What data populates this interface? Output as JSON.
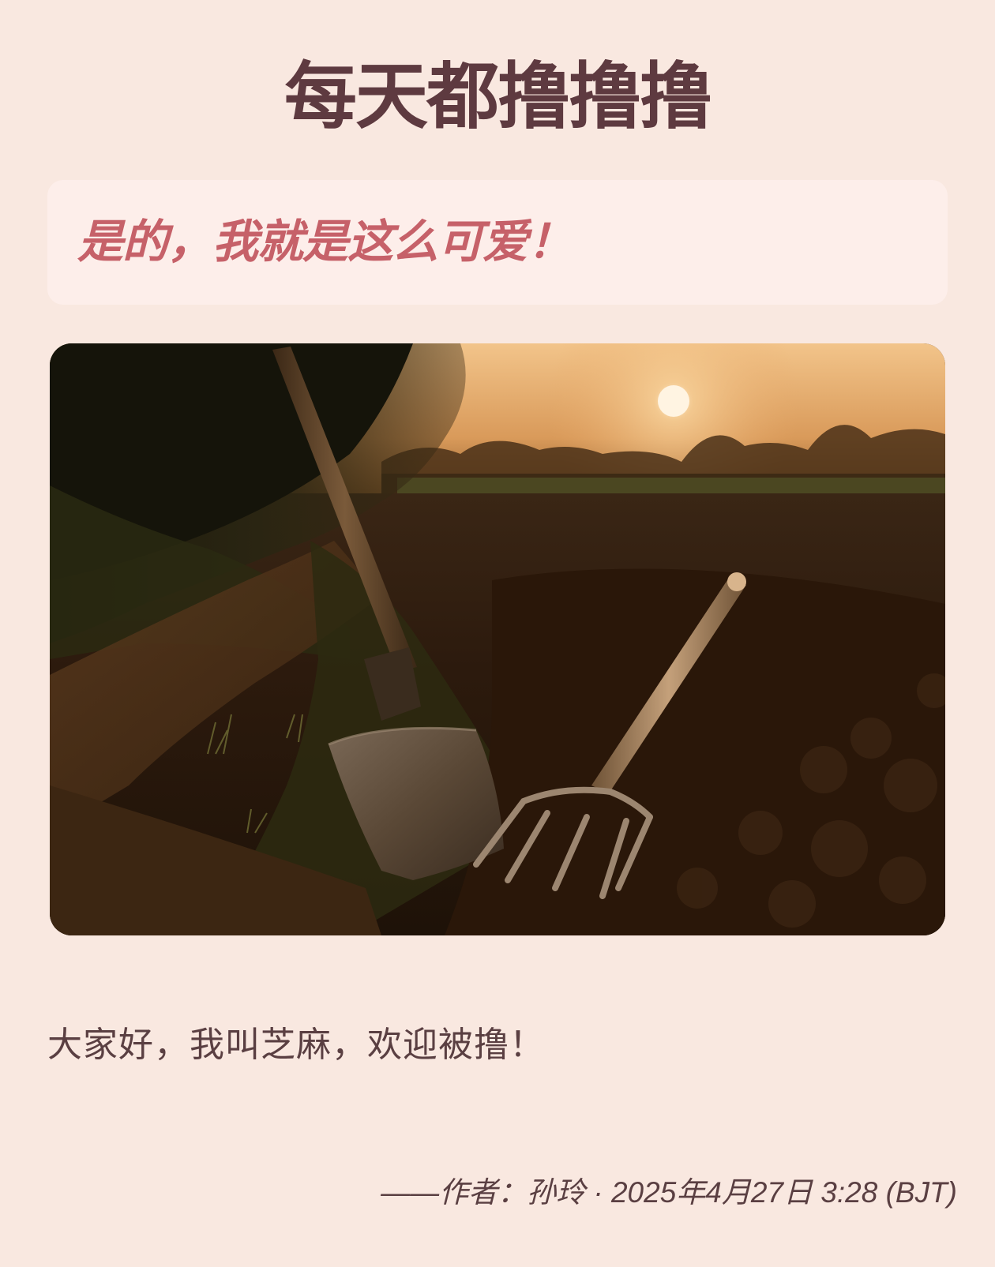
{
  "header": {
    "title": "每天都撸撸撸"
  },
  "quote": {
    "text": "是的，我就是这么可爱！"
  },
  "photo": {
    "description_icon": "field-shovel-pitchfork-sunset-photo"
  },
  "body": {
    "text": "大家好，我叫芝麻，欢迎被撸！"
  },
  "footer": {
    "byline": "——作者：孙玲 · 2025年4月27日 3:28 (BJT)"
  },
  "colors": {
    "background": "#f9e8e0",
    "title": "#5e3a40",
    "quote_bg": "#fdeeea",
    "quote_text": "#c66169",
    "body_text": "#5a3f42"
  }
}
